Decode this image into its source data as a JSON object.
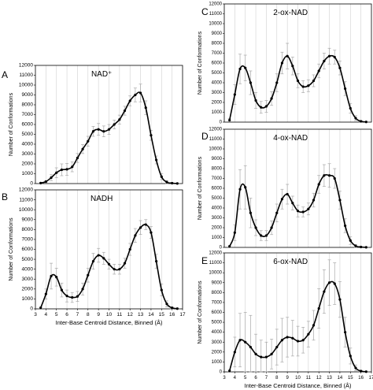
{
  "figure": {
    "x_ticks": [
      "3",
      "4",
      "5",
      "6",
      "7",
      "8",
      "9",
      "10",
      "11",
      "12",
      "13",
      "14",
      "15",
      "16",
      "17"
    ]
  },
  "chart_data": [
    {
      "panel": "A",
      "type": "line",
      "title": "NAD⁺",
      "xlabel": "",
      "ylabel": "Number of Conformations",
      "xlim": [
        3,
        17
      ],
      "ylim": [
        0,
        12000
      ],
      "y_ticks": [
        "0",
        "1000",
        "2000",
        "3000",
        "4000",
        "5000",
        "6000",
        "7000",
        "8000",
        "9000",
        "10000",
        "11000",
        "12000"
      ],
      "x_ticks": [],
      "x": [
        3.5,
        4,
        4.5,
        5,
        5.5,
        6,
        6.5,
        7,
        7.5,
        8,
        8.5,
        9,
        9.5,
        10,
        10.5,
        11,
        11.5,
        12,
        12.5,
        13,
        13.5,
        14,
        14.5,
        15,
        15.5,
        16,
        16.5
      ],
      "y": [
        50,
        200,
        600,
        1100,
        1400,
        1450,
        1700,
        2600,
        3500,
        4300,
        5300,
        5500,
        5300,
        5500,
        6000,
        6500,
        7400,
        8400,
        9000,
        9200,
        7700,
        4900,
        2400,
        700,
        150,
        40,
        10
      ],
      "err": [
        40,
        100,
        300,
        500,
        600,
        600,
        500,
        450,
        450,
        500,
        500,
        600,
        550,
        500,
        450,
        450,
        450,
        500,
        700,
        900,
        700,
        500,
        400,
        300,
        150,
        60,
        30
      ]
    },
    {
      "panel": "B",
      "type": "line",
      "title": "NADH",
      "xlabel": "Inter-Base Centroid Distance, Binned (Å)",
      "ylabel": "Number of Conformations",
      "xlim": [
        3,
        17
      ],
      "ylim": [
        0,
        12000
      ],
      "y_ticks": [
        "0",
        "1000",
        "2000",
        "3000",
        "4000",
        "5000",
        "6000",
        "7000",
        "8000",
        "9000",
        "10000",
        "11000",
        "12000"
      ],
      "x_ticks": [
        "3",
        "4",
        "5",
        "6",
        "7",
        "8",
        "9",
        "10",
        "11",
        "12",
        "13",
        "14",
        "15",
        "16",
        "17"
      ],
      "x": [
        3.5,
        4,
        4.5,
        5,
        5.5,
        6,
        6.5,
        7,
        7.5,
        8,
        8.5,
        9,
        9.5,
        10,
        10.5,
        11,
        11.5,
        12,
        12.5,
        13,
        13.5,
        14,
        14.5,
        15,
        15.5,
        16,
        16.5
      ],
      "y": [
        100,
        1500,
        3300,
        3200,
        1900,
        1300,
        1150,
        1250,
        2000,
        3400,
        4800,
        5400,
        5100,
        4500,
        4000,
        4000,
        4600,
        6000,
        7400,
        8200,
        8500,
        7700,
        4800,
        1900,
        500,
        100,
        20
      ],
      "err": [
        80,
        500,
        1300,
        900,
        700,
        600,
        500,
        500,
        600,
        700,
        800,
        700,
        600,
        500,
        500,
        500,
        500,
        600,
        700,
        700,
        500,
        600,
        700,
        600,
        300,
        100,
        40
      ]
    },
    {
      "panel": "C",
      "type": "line",
      "title": "2-ox-NAD",
      "xlabel": "",
      "ylabel": "Number of Conformations",
      "xlim": [
        3,
        17
      ],
      "ylim": [
        0,
        12000
      ],
      "y_ticks": [
        "0",
        "1000",
        "2000",
        "3000",
        "4000",
        "5000",
        "6000",
        "7000",
        "8000",
        "9000",
        "10000",
        "11000",
        "12000"
      ],
      "x_ticks": [],
      "x": [
        3.5,
        4,
        4.5,
        5,
        5.5,
        6,
        6.5,
        7,
        7.5,
        8,
        8.5,
        9,
        9.5,
        10,
        10.5,
        11,
        11.5,
        12,
        12.5,
        13,
        13.5,
        14,
        14.5,
        15,
        15.5,
        16,
        16.5
      ],
      "y": [
        200,
        2800,
        5400,
        5500,
        4000,
        2200,
        1500,
        1600,
        2400,
        4000,
        6000,
        6700,
        5700,
        4200,
        3600,
        3700,
        4200,
        5200,
        6200,
        6700,
        6600,
        5500,
        3400,
        1400,
        400,
        80,
        20
      ],
      "err": [
        150,
        1000,
        1500,
        1300,
        1200,
        800,
        600,
        600,
        700,
        900,
        1100,
        1300,
        900,
        700,
        600,
        600,
        600,
        700,
        800,
        800,
        700,
        700,
        700,
        500,
        250,
        80,
        30
      ]
    },
    {
      "panel": "D",
      "type": "line",
      "title": "4-ox-NAD",
      "xlabel": "",
      "ylabel": "Number of Conformations",
      "xlim": [
        3,
        17
      ],
      "ylim": [
        0,
        12000
      ],
      "y_ticks": [
        "0",
        "1000",
        "2000",
        "3000",
        "4000",
        "5000",
        "6000",
        "7000",
        "8000",
        "9000",
        "10000",
        "11000",
        "12000"
      ],
      "x_ticks": [],
      "x": [
        3.5,
        4,
        4.5,
        5,
        5.5,
        6,
        6.5,
        7,
        7.5,
        8,
        8.5,
        9,
        9.5,
        10,
        10.5,
        11,
        11.5,
        12,
        12.5,
        13,
        13.5,
        14,
        14.5,
        15,
        15.5,
        16,
        16.5
      ],
      "y": [
        100,
        1500,
        5900,
        6100,
        3500,
        2000,
        1200,
        1200,
        2000,
        3500,
        4900,
        5400,
        4500,
        3700,
        3600,
        3900,
        4800,
        6400,
        7300,
        7300,
        7000,
        4800,
        2200,
        700,
        150,
        40,
        10
      ],
      "err": [
        80,
        800,
        2000,
        2200,
        1500,
        800,
        500,
        500,
        700,
        900,
        1000,
        1000,
        700,
        600,
        500,
        600,
        700,
        900,
        1100,
        1200,
        1000,
        900,
        700,
        400,
        150,
        50,
        20
      ]
    },
    {
      "panel": "E",
      "type": "line",
      "title": "6-ox-NAD",
      "xlabel": "Inter-Base Centroid Distance, Binned (Å)",
      "ylabel": "Number of Conformations",
      "xlim": [
        3,
        17
      ],
      "ylim": [
        0,
        12000
      ],
      "y_ticks": [
        "0",
        "1000",
        "2000",
        "3000",
        "4000",
        "5000",
        "6000",
        "7000",
        "8000",
        "9000",
        "10000",
        "11000",
        "12000"
      ],
      "x_ticks": [
        "3",
        "4",
        "5",
        "6",
        "7",
        "8",
        "9",
        "10",
        "11",
        "12",
        "13",
        "14",
        "15",
        "16",
        "17"
      ],
      "x": [
        3.5,
        4,
        4.5,
        5,
        5.5,
        6,
        6.5,
        7,
        7.5,
        8,
        8.5,
        9,
        9.5,
        10,
        10.5,
        11,
        11.5,
        12,
        12.5,
        13,
        13.5,
        14,
        14.5,
        15,
        15.5,
        16,
        16.5
      ],
      "y": [
        100,
        2000,
        3200,
        3000,
        2500,
        1800,
        1500,
        1500,
        1800,
        2500,
        3200,
        3500,
        3400,
        3100,
        3200,
        3800,
        4700,
        6400,
        8100,
        9000,
        8900,
        7300,
        4000,
        1600,
        400,
        80,
        20
      ],
      "err": [
        80,
        1500,
        2700,
        3000,
        3200,
        2000,
        1700,
        1500,
        1500,
        1800,
        2200,
        2000,
        1800,
        1500,
        1300,
        1300,
        1500,
        2000,
        2200,
        2300,
        2100,
        1800,
        1500,
        800,
        300,
        80,
        30
      ]
    }
  ]
}
